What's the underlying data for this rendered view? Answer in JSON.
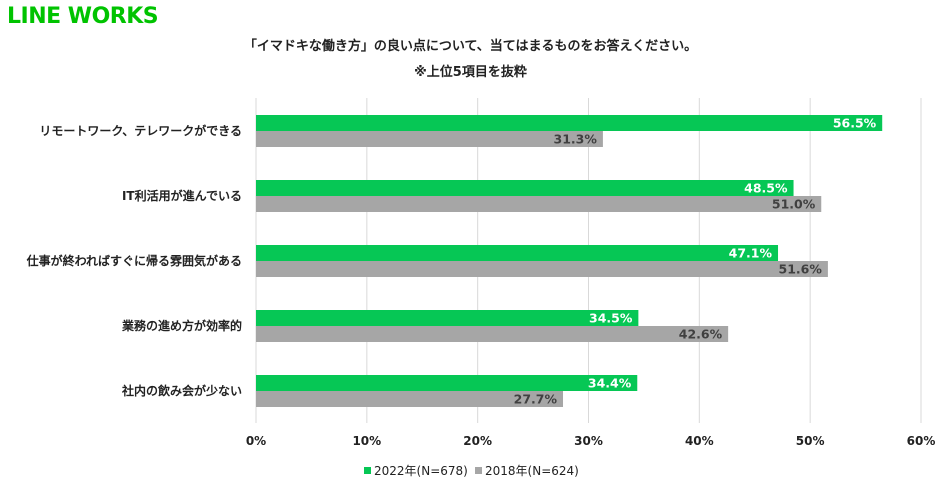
{
  "logo": "LINE WORKS",
  "colors": {
    "brand": "#00c300",
    "series_2022": "#06c755",
    "series_2018": "#a6a6a6",
    "grid": "#d9d9d9"
  },
  "chart_data": {
    "type": "bar",
    "orientation": "horizontal",
    "title": "「イマドキな働き方」の良い点について、当てはまるものをお答えください。",
    "subtitle": "※上位5項目を抜粋",
    "categories": [
      "リモートワーク、テレワークができる",
      "IT利活用が進んでいる",
      "仕事が終わればすぐに帰る雰囲気がある",
      "業務の進め方が効率的",
      "社内の飲み会が少ない"
    ],
    "series": [
      {
        "name": "2022年(N=678)",
        "values": [
          56.5,
          48.5,
          47.1,
          34.5,
          34.4
        ],
        "labels": [
          "56.5%",
          "48.5%",
          "47.1%",
          "34.5%",
          "34.4%"
        ]
      },
      {
        "name": "2018年(N=624)",
        "values": [
          31.3,
          51.0,
          51.6,
          42.6,
          27.7
        ],
        "labels": [
          "31.3%",
          "51.0%",
          "51.6%",
          "42.6%",
          "27.7%"
        ]
      }
    ],
    "xlim": [
      0,
      60
    ],
    "xticks": [
      "0%",
      "10%",
      "20%",
      "30%",
      "40%",
      "50%",
      "60%"
    ],
    "grid": true,
    "legend_position": "bottom"
  }
}
